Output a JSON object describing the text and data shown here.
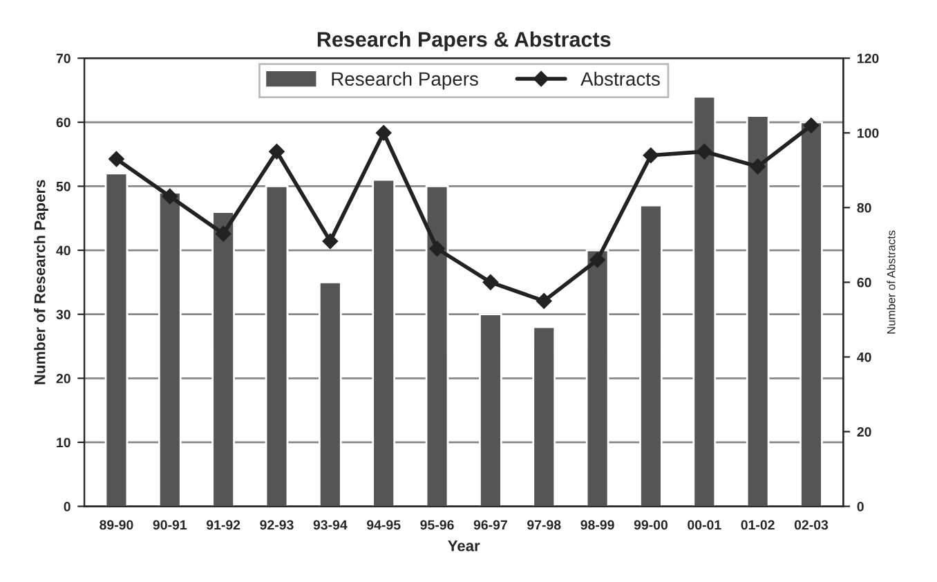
{
  "chart_data": {
    "type": "bar",
    "title": "Research Papers & Abstracts",
    "xlabel": "Year",
    "ylabel": "Number of Research Papers",
    "y2label": "Number of Abstracts",
    "categories": [
      "89-90",
      "90-91",
      "91-92",
      "92-93",
      "93-94",
      "94-95",
      "95-96",
      "96-97",
      "97-98",
      "98-99",
      "99-00",
      "00-01",
      "01-02",
      "02-03"
    ],
    "series": [
      {
        "name": "Research Papers",
        "color": "#555555",
        "values": [
          52,
          49,
          46,
          50,
          35,
          51,
          50,
          30,
          28,
          40,
          47,
          64,
          61,
          60
        ]
      },
      {
        "name": "Abstracts",
        "type": "line",
        "axis": "y2",
        "color": "#222222",
        "marker": "diamond",
        "values": [
          93,
          83,
          73,
          95,
          71,
          100,
          69,
          60,
          55,
          66,
          94,
          95,
          91,
          102
        ]
      }
    ],
    "ylim": [
      0,
      70
    ],
    "yticks": [
      0,
      10,
      20,
      30,
      40,
      50,
      60,
      70
    ],
    "y2lim": [
      0,
      120
    ],
    "y2ticks": [
      0,
      20,
      40,
      60,
      80,
      100,
      120
    ],
    "grid": "y",
    "legend": "top"
  }
}
